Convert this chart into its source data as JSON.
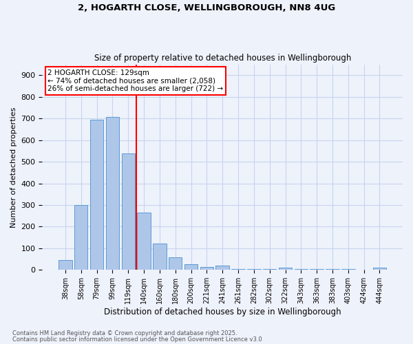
{
  "title1": "2, HOGARTH CLOSE, WELLINGBOROUGH, NN8 4UG",
  "title2": "Size of property relative to detached houses in Wellingborough",
  "xlabel": "Distribution of detached houses by size in Wellingborough",
  "ylabel": "Number of detached properties",
  "bar_labels": [
    "38sqm",
    "58sqm",
    "79sqm",
    "99sqm",
    "119sqm",
    "140sqm",
    "160sqm",
    "180sqm",
    "200sqm",
    "221sqm",
    "241sqm",
    "261sqm",
    "282sqm",
    "302sqm",
    "322sqm",
    "343sqm",
    "363sqm",
    "383sqm",
    "403sqm",
    "424sqm",
    "444sqm"
  ],
  "bar_values": [
    47,
    300,
    693,
    707,
    537,
    265,
    122,
    58,
    28,
    15,
    20,
    5,
    5,
    5,
    10,
    5,
    5,
    5,
    5,
    0,
    10
  ],
  "bar_color": "#aec6e8",
  "bar_edgecolor": "#5b9bd5",
  "background_color": "#eef2fb",
  "grid_color": "#c8d4ee",
  "vline_x": 4.5,
  "vline_color": "red",
  "annotation_text": "2 HOGARTH CLOSE: 129sqm\n← 74% of detached houses are smaller (2,058)\n26% of semi-detached houses are larger (722) →",
  "annotation_box_color": "white",
  "annotation_box_edgecolor": "red",
  "footnote1": "Contains HM Land Registry data © Crown copyright and database right 2025.",
  "footnote2": "Contains public sector information licensed under the Open Government Licence v3.0",
  "ylim": [
    0,
    950
  ],
  "yticks": [
    0,
    100,
    200,
    300,
    400,
    500,
    600,
    700,
    800,
    900
  ]
}
